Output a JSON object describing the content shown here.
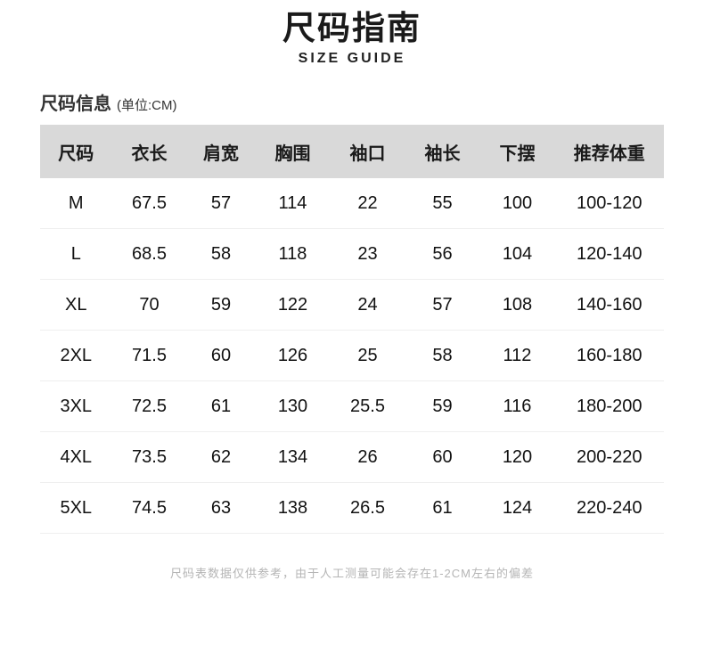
{
  "title": {
    "cn": "尺码指南",
    "en": "SIZE GUIDE"
  },
  "section": {
    "label": "尺码信息",
    "unit": "(单位:CM)"
  },
  "table": {
    "headers": [
      "尺码",
      "衣长",
      "肩宽",
      "胸围",
      "袖口",
      "袖长",
      "下摆",
      "推荐体重"
    ],
    "rows": [
      [
        "M",
        "67.5",
        "57",
        "114",
        "22",
        "55",
        "100",
        "100-120"
      ],
      [
        "L",
        "68.5",
        "58",
        "118",
        "23",
        "56",
        "104",
        "120-140"
      ],
      [
        "XL",
        "70",
        "59",
        "122",
        "24",
        "57",
        "108",
        "140-160"
      ],
      [
        "2XL",
        "71.5",
        "60",
        "126",
        "25",
        "58",
        "112",
        "160-180"
      ],
      [
        "3XL",
        "72.5",
        "61",
        "130",
        "25.5",
        "59",
        "116",
        "180-200"
      ],
      [
        "4XL",
        "73.5",
        "62",
        "134",
        "26",
        "60",
        "120",
        "200-220"
      ],
      [
        "5XL",
        "74.5",
        "63",
        "138",
        "26.5",
        "61",
        "124",
        "220-240"
      ]
    ]
  },
  "footer": {
    "note": "尺码表数据仅供参考，由于人工测量可能会存在1-2CM左右的偏差"
  },
  "colors": {
    "header_bg": "#d9d9d9",
    "text": "#1a1a1a",
    "divider": "#efefef",
    "note_text": "#b5b5b5"
  }
}
